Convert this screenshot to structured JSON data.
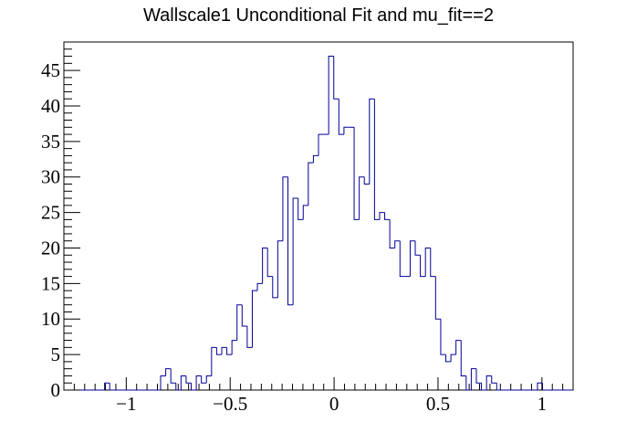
{
  "chart_data": {
    "type": "bar",
    "title": "Wallscale1 Unconditional Fit and mu_fit==2",
    "xlabel": "",
    "ylabel": "",
    "xlim": [
      -1.3,
      1.15
    ],
    "ylim": [
      0,
      49
    ],
    "bin_width": 0.0245,
    "x_ticks": [
      -1,
      -0.5,
      0,
      0.5,
      1
    ],
    "x_tick_labels": [
      "−1",
      "−0.5",
      "0",
      "0.5",
      "1"
    ],
    "y_ticks": [
      0,
      5,
      10,
      15,
      20,
      25,
      30,
      35,
      40,
      45
    ],
    "y_tick_labels": [
      "0",
      "5",
      "10",
      "15",
      "20",
      "25",
      "30",
      "35",
      "40",
      "45"
    ],
    "grid": false,
    "line_color": "#000099",
    "values": [
      0,
      0,
      0,
      0,
      0,
      0,
      0,
      0,
      1,
      0,
      0,
      0,
      0,
      0,
      0,
      0,
      0,
      0,
      0,
      2,
      3,
      1,
      0,
      2,
      1,
      0,
      2,
      1,
      2,
      6,
      5,
      6,
      5,
      7,
      12,
      9,
      6,
      14,
      15,
      20,
      16,
      13,
      21,
      30,
      12,
      27,
      24,
      26,
      32,
      33,
      36,
      36,
      47,
      41,
      36,
      37,
      37,
      24,
      30,
      29,
      41,
      24,
      25,
      24,
      20,
      21,
      16,
      16,
      21,
      19,
      16,
      20,
      16,
      10,
      5,
      4,
      5,
      7,
      2,
      0,
      3,
      1,
      0,
      2,
      1,
      0,
      0,
      0,
      0,
      0,
      0,
      0,
      0,
      1,
      0,
      0,
      0,
      0,
      0,
      0
    ]
  }
}
